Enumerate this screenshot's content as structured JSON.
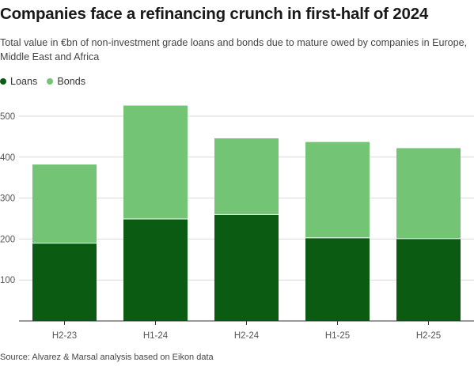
{
  "chart_data": {
    "type": "bar",
    "stacked": true,
    "title": "Companies face a refinancing crunch in first-half of 2024",
    "subtitle": "Total value in €bn of non-investment grade loans and bonds due to mature owed by companies in Europe, Middle East and Africa",
    "categories": [
      "H2-23",
      "H1-24",
      "H2-24",
      "H1-25",
      "H2-25"
    ],
    "series": [
      {
        "name": "Loans",
        "values": [
          190,
          249,
          260,
          203,
          201
        ],
        "color": "#0b5c12"
      },
      {
        "name": "Bonds",
        "values": [
          192,
          277,
          186,
          234,
          221
        ],
        "color": "#74c476"
      }
    ],
    "ylim": [
      0,
      500
    ],
    "yticks": [
      100,
      200,
      300,
      400,
      500
    ],
    "legend": "top-left",
    "grid": true,
    "source": "Source: Alvarez & Marsal analysis based on Eikon data"
  }
}
